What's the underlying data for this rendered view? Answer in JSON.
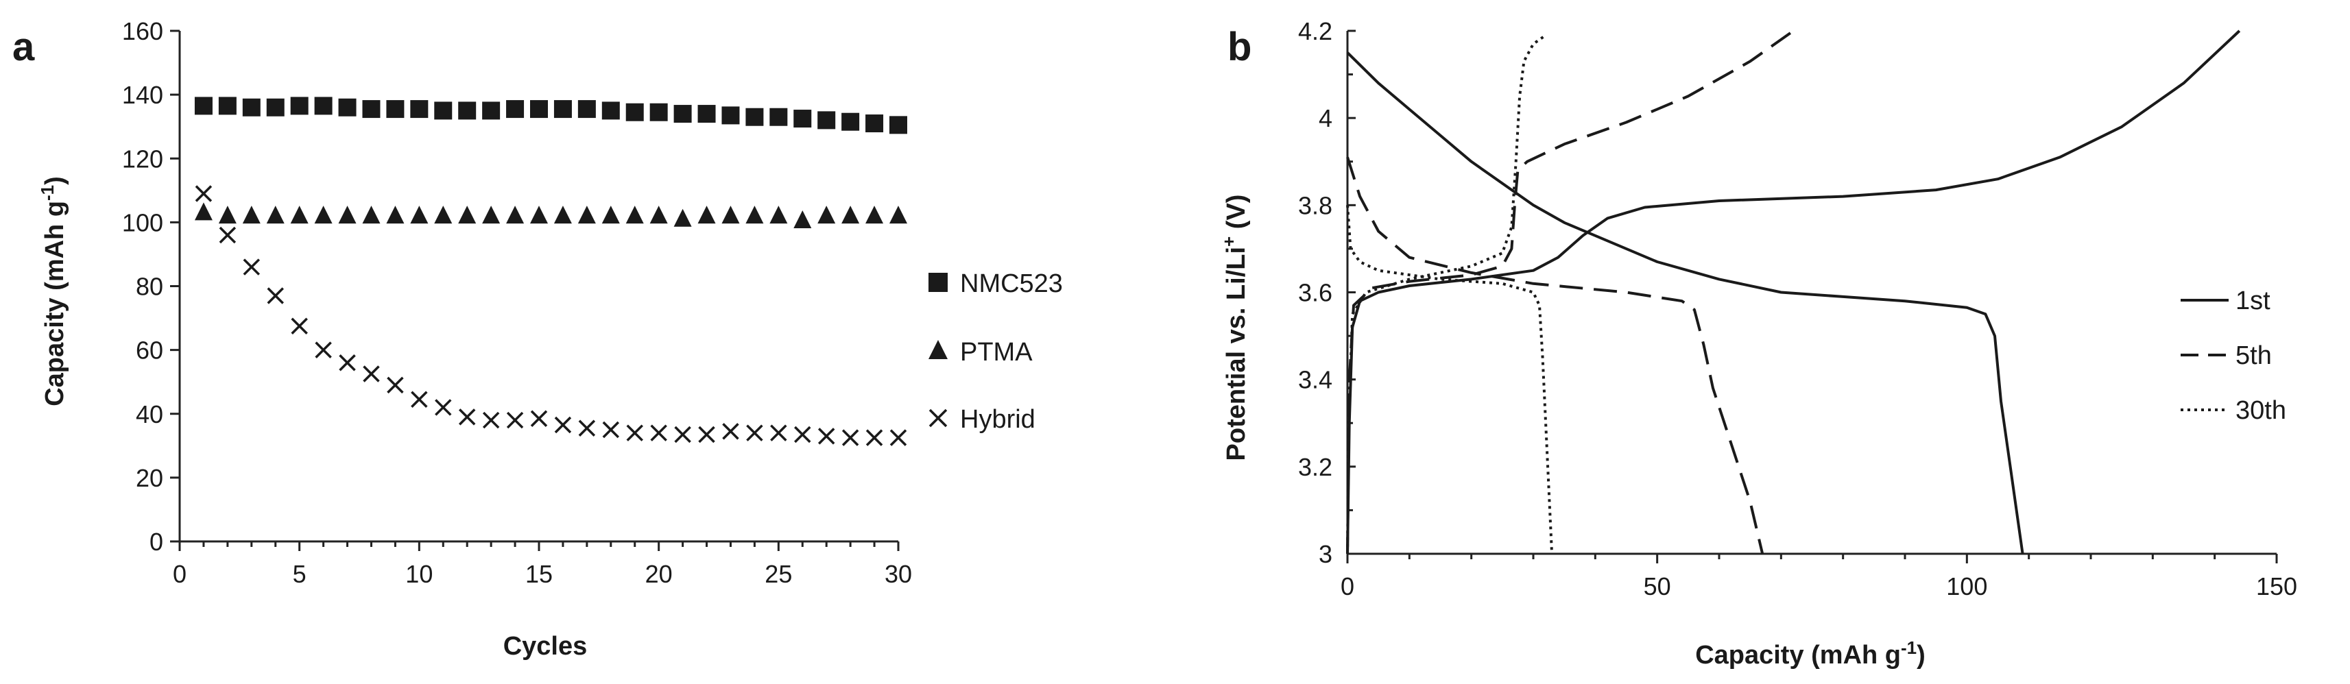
{
  "chart_data": [
    {
      "panel_label": "a",
      "type": "scatter",
      "xlabel": "Cycles",
      "ylabel_main": "Capacity (mAh g",
      "ylabel_sup": "-1",
      "ylabel_tail": ")",
      "xlim": [
        0,
        30
      ],
      "ylim": [
        0,
        160
      ],
      "xticks": [
        0,
        5,
        10,
        15,
        20,
        25,
        30
      ],
      "yticks": [
        0,
        20,
        40,
        60,
        80,
        100,
        120,
        140,
        160
      ],
      "grid": false,
      "legend_position": "right",
      "series": [
        {
          "name": "NMC523",
          "marker": "square",
          "x": [
            1,
            2,
            3,
            4,
            5,
            6,
            7,
            8,
            9,
            10,
            11,
            12,
            13,
            14,
            15,
            16,
            17,
            18,
            19,
            20,
            21,
            22,
            23,
            24,
            25,
            26,
            27,
            28,
            29,
            30
          ],
          "y": [
            136.5,
            136.5,
            136,
            136,
            136.5,
            136.5,
            136,
            135.5,
            135.5,
            135.5,
            135,
            135,
            135,
            135.5,
            135.5,
            135.5,
            135.5,
            135,
            134.5,
            134.5,
            134,
            134,
            133.5,
            133,
            133,
            132.5,
            132,
            131.5,
            131,
            130.5
          ]
        },
        {
          "name": "PTMA",
          "marker": "triangle",
          "x": [
            1,
            2,
            3,
            4,
            5,
            6,
            7,
            8,
            9,
            10,
            11,
            12,
            13,
            14,
            15,
            16,
            17,
            18,
            19,
            20,
            21,
            22,
            23,
            24,
            25,
            26,
            27,
            28,
            29,
            30
          ],
          "y": [
            103,
            102,
            102,
            102,
            102,
            102,
            102,
            102,
            102,
            102,
            102,
            102,
            102,
            102,
            102,
            102,
            102,
            102,
            102,
            102,
            101,
            102,
            102,
            102,
            102,
            100.5,
            102,
            102,
            102,
            102
          ]
        },
        {
          "name": "Hybrid",
          "marker": "x",
          "x": [
            1,
            2,
            3,
            4,
            5,
            6,
            7,
            8,
            9,
            10,
            11,
            12,
            13,
            14,
            15,
            16,
            17,
            18,
            19,
            20,
            21,
            22,
            23,
            24,
            25,
            26,
            27,
            28,
            29,
            30
          ],
          "y": [
            109,
            96,
            86,
            77,
            67.5,
            60,
            56,
            52.5,
            49,
            44.5,
            42,
            39,
            38,
            38,
            38.5,
            36.5,
            35.5,
            35,
            34,
            34,
            33.5,
            33.5,
            34.5,
            34,
            34,
            33.5,
            33,
            32.5,
            32.5,
            32.5
          ]
        }
      ]
    },
    {
      "panel_label": "b",
      "type": "line",
      "xlabel_main": "Capacity (mAh g",
      "xlabel_sup": "-1",
      "xlabel_tail": ")",
      "ylabel_main": "Potential vs. Li/Li",
      "ylabel_sup": "+",
      "ylabel_tail": " (V)",
      "xlim": [
        0,
        150
      ],
      "ylim": [
        3,
        4.2
      ],
      "xticks": [
        0,
        50,
        100,
        150
      ],
      "xtick_labels": [
        "0",
        "50",
        "100",
        "150"
      ],
      "yticks": [
        3,
        3.2,
        3.4,
        3.6,
        3.8,
        4,
        4.2
      ],
      "ytick_labels": [
        "3",
        "3.2",
        "3.4",
        "3.6",
        "3.8",
        "4",
        "4.2"
      ],
      "grid": false,
      "legend_position": "right",
      "series": [
        {
          "name": "1st",
          "style": "solid",
          "segments": [
            [
              [
                0,
                4.15
              ],
              [
                5,
                4.08
              ],
              [
                10,
                4.02
              ],
              [
                15,
                3.96
              ],
              [
                20,
                3.9
              ],
              [
                25,
                3.85
              ],
              [
                30,
                3.8
              ],
              [
                35,
                3.76
              ],
              [
                40,
                3.73
              ],
              [
                50,
                3.67
              ],
              [
                60,
                3.63
              ],
              [
                70,
                3.6
              ],
              [
                80,
                3.59
              ],
              [
                90,
                3.58
              ],
              [
                100,
                3.565
              ],
              [
                103,
                3.55
              ],
              [
                104.5,
                3.5
              ],
              [
                105.5,
                3.35
              ],
              [
                107,
                3.2
              ],
              [
                108.5,
                3.05
              ],
              [
                109,
                3.0
              ]
            ],
            [
              [
                0,
                3.0
              ],
              [
                0.3,
                3.3
              ],
              [
                0.8,
                3.52
              ],
              [
                2,
                3.58
              ],
              [
                5,
                3.6
              ],
              [
                10,
                3.615
              ],
              [
                20,
                3.63
              ],
              [
                30,
                3.65
              ],
              [
                34,
                3.68
              ],
              [
                38,
                3.73
              ],
              [
                42,
                3.77
              ],
              [
                48,
                3.795
              ],
              [
                60,
                3.81
              ],
              [
                80,
                3.82
              ],
              [
                95,
                3.835
              ],
              [
                105,
                3.86
              ],
              [
                115,
                3.91
              ],
              [
                125,
                3.98
              ],
              [
                135,
                4.08
              ],
              [
                144,
                4.2
              ]
            ]
          ]
        },
        {
          "name": "5th",
          "style": "dashed",
          "segments": [
            [
              [
                0,
                3.91
              ],
              [
                2,
                3.82
              ],
              [
                5,
                3.74
              ],
              [
                10,
                3.68
              ],
              [
                20,
                3.645
              ],
              [
                30,
                3.62
              ],
              [
                45,
                3.6
              ],
              [
                54,
                3.58
              ],
              [
                56,
                3.56
              ],
              [
                57.5,
                3.48
              ],
              [
                59,
                3.38
              ],
              [
                62,
                3.25
              ],
              [
                65,
                3.12
              ],
              [
                67,
                3.0
              ]
            ],
            [
              [
                0,
                3.0
              ],
              [
                0.3,
                3.4
              ],
              [
                1,
                3.57
              ],
              [
                4,
                3.61
              ],
              [
                10,
                3.625
              ],
              [
                20,
                3.64
              ],
              [
                25,
                3.66
              ],
              [
                26.5,
                3.7
              ],
              [
                27,
                3.8
              ],
              [
                27.5,
                3.88
              ],
              [
                29,
                3.9
              ],
              [
                35,
                3.94
              ],
              [
                45,
                3.99
              ],
              [
                55,
                4.05
              ],
              [
                65,
                4.13
              ],
              [
                72,
                4.2
              ]
            ]
          ]
        },
        {
          "name": "30th",
          "style": "dotted",
          "segments": [
            [
              [
                0,
                3.8
              ],
              [
                0.5,
                3.7
              ],
              [
                2,
                3.67
              ],
              [
                5,
                3.65
              ],
              [
                15,
                3.63
              ],
              [
                25,
                3.62
              ],
              [
                30,
                3.6
              ],
              [
                31,
                3.57
              ],
              [
                31.5,
                3.45
              ],
              [
                32,
                3.3
              ],
              [
                32.5,
                3.15
              ],
              [
                33,
                3.0
              ]
            ],
            [
              [
                0,
                3.0
              ],
              [
                0.2,
                3.3
              ],
              [
                0.8,
                3.55
              ],
              [
                3,
                3.6
              ],
              [
                10,
                3.63
              ],
              [
                20,
                3.66
              ],
              [
                25,
                3.69
              ],
              [
                26.5,
                3.75
              ],
              [
                27.2,
                3.9
              ],
              [
                27.8,
                4.05
              ],
              [
                28.5,
                4.13
              ],
              [
                30,
                4.17
              ],
              [
                32,
                4.19
              ]
            ]
          ]
        }
      ]
    }
  ]
}
